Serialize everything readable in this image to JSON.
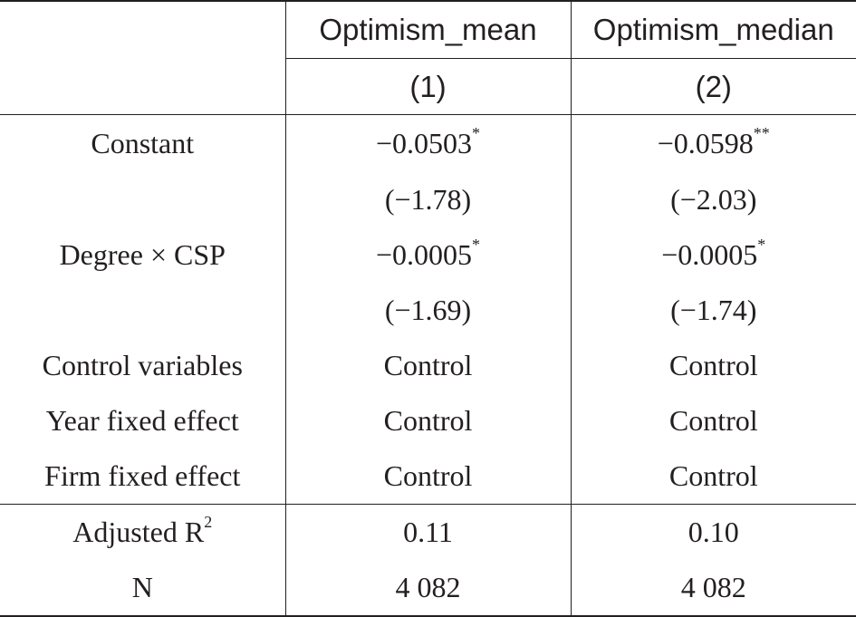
{
  "table": {
    "columns": {
      "col1_name": "Optimism_mean",
      "col2_name": "Optimism_median",
      "col1_num": "(1)",
      "col2_num": "(2)"
    },
    "rows": [
      {
        "label": "Constant",
        "v1": "−0.0503",
        "s1": "*",
        "v2": "−0.0598",
        "s2": "**"
      },
      {
        "label": "",
        "v1": "(−1.78)",
        "s1": "",
        "v2": "(−2.03)",
        "s2": ""
      },
      {
        "label": "Degree × CSP",
        "v1": "−0.0005",
        "s1": "*",
        "v2": "−0.0005",
        "s2": "*"
      },
      {
        "label": "",
        "v1": "(−1.69)",
        "s1": "",
        "v2": "(−1.74)",
        "s2": ""
      },
      {
        "label": "Control variables",
        "v1": "Control",
        "s1": "",
        "v2": "Control",
        "s2": ""
      },
      {
        "label": "Year fixed effect",
        "v1": "Control",
        "s1": "",
        "v2": "Control",
        "s2": ""
      },
      {
        "label": "Firm fixed effect",
        "v1": "Control",
        "s1": "",
        "v2": "Control",
        "s2": ""
      }
    ],
    "stats": [
      {
        "label": "Adjusted R",
        "label_sup": "2",
        "v1": "0.11",
        "v2": "0.10"
      },
      {
        "label": "N",
        "label_sup": "",
        "v1": "4 082",
        "v2": "4 082"
      }
    ]
  }
}
